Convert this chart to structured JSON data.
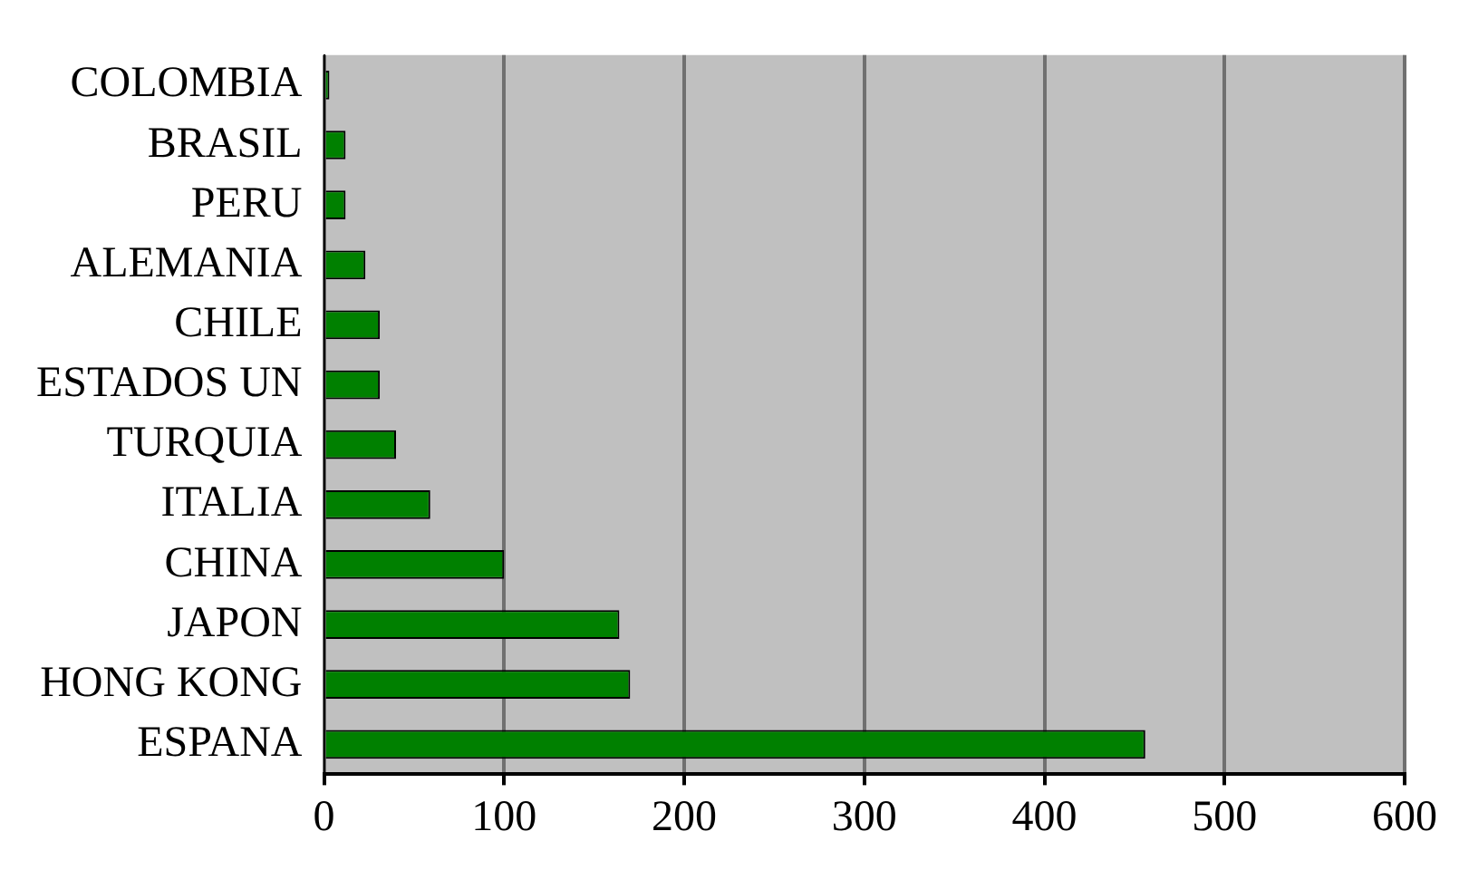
{
  "chart_data": {
    "type": "bar",
    "orientation": "horizontal",
    "categories": [
      "COLOMBIA",
      "BRASIL",
      "PERU",
      "ALEMANIA",
      "CHILE",
      "ESTADOS UN",
      "TURQUIA",
      "ITALIA",
      "CHINA",
      "JAPON",
      "HONG KONG",
      "ESPANA"
    ],
    "values": [
      3,
      12,
      12,
      23,
      31,
      31,
      40,
      59,
      100,
      164,
      170,
      456
    ],
    "color": "#008000",
    "xlim": [
      0,
      600
    ],
    "xticks": [
      0,
      100,
      200,
      300,
      400,
      500,
      600
    ],
    "grid": "x",
    "legend": false
  }
}
